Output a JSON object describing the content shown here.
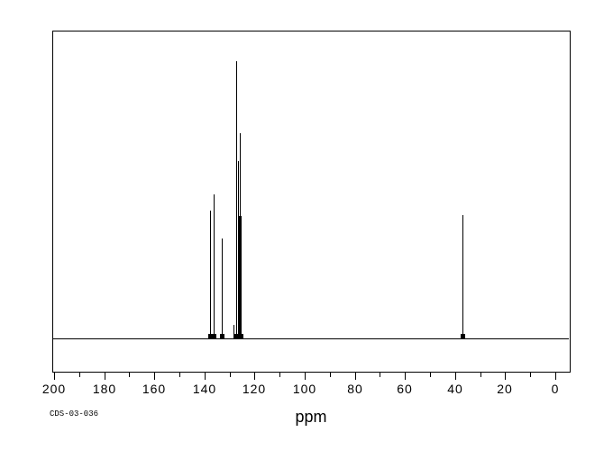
{
  "window": {
    "background_color": "#ffffff",
    "foreground_color": "#000000"
  },
  "footer": {
    "catalog_id": "CDS-03-036",
    "axis_label": "ppm"
  },
  "chart_data": {
    "type": "line",
    "subtype": "nmr-spectrum",
    "title": "",
    "xlabel": "ppm",
    "ylabel": "",
    "annotation": "CDS-03-036",
    "grid": false,
    "legend": false,
    "line_color": "#000000",
    "x_axis": {
      "range": [
        200,
        -8
      ],
      "inverted": true,
      "major_tick_interval": 20,
      "minor_tick_interval": 10,
      "tick_labels": [
        "200",
        "180",
        "160",
        "140",
        "120",
        "100",
        "80",
        "60",
        "40",
        "20",
        "0"
      ]
    },
    "y_axis": {
      "visible": false,
      "range": [
        0,
        1.1
      ]
    },
    "peaks": [
      {
        "ppm": 137.5,
        "intensity": 0.46
      },
      {
        "ppm": 136.0,
        "intensity": 0.52
      },
      {
        "ppm": 132.8,
        "intensity": 0.36
      },
      {
        "ppm": 128.2,
        "intensity": 0.05
      },
      {
        "ppm": 127.2,
        "intensity": 1.0
      },
      {
        "ppm": 126.5,
        "intensity": 0.64
      },
      {
        "ppm": 126.2,
        "intensity": 0.44,
        "broad": true
      },
      {
        "ppm": 125.8,
        "intensity": 0.74
      },
      {
        "ppm": 125.7,
        "intensity": 0.44,
        "broad": true
      },
      {
        "ppm": 37.0,
        "intensity": 0.445
      }
    ]
  }
}
